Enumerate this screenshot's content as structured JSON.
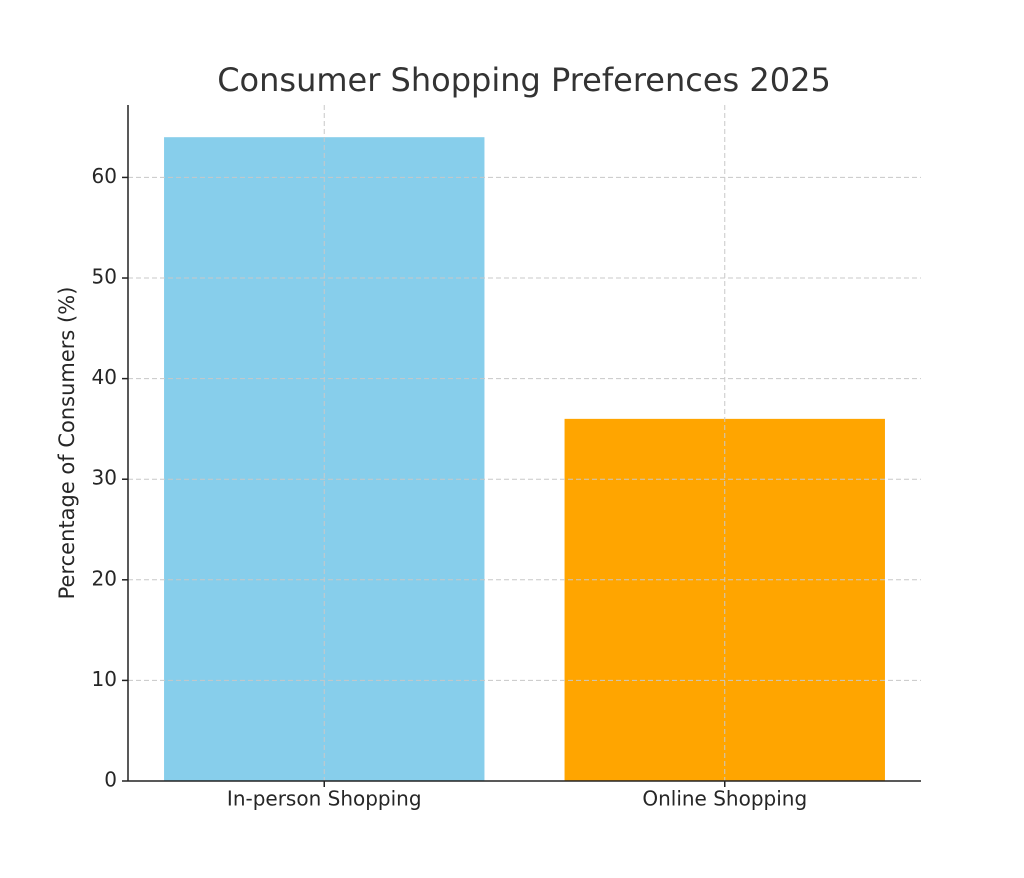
{
  "chart_data": {
    "type": "bar",
    "title": "Consumer Shopping Preferences 2025",
    "y_label": "Percentage of Consumers (%)",
    "categories": [
      "In-person Shopping",
      "Online Shopping"
    ],
    "values": [
      64,
      36
    ],
    "colors": [
      "#87ceeb",
      "#ffa500"
    ],
    "ylim": [
      0,
      67.2
    ],
    "yticks": [
      0,
      10,
      20,
      30,
      40,
      50,
      60
    ],
    "grid": true
  }
}
